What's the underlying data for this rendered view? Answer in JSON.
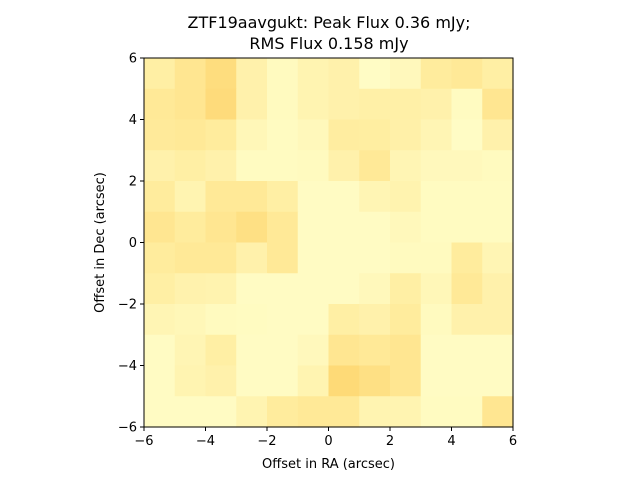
{
  "chart_data": {
    "type": "heatmap",
    "title_line1": "ZTF19aavgukt: Peak Flux 0.36 mJy;",
    "title_line2": "RMS Flux 0.158 mJy",
    "xlabel": "Offset in RA (arcsec)",
    "ylabel": "Offset in Dec (arcsec)",
    "xlim": [
      -6,
      6
    ],
    "ylim": [
      -6,
      6
    ],
    "xticks": [
      "−6",
      "−4",
      "−2",
      "0",
      "2",
      "4",
      "6"
    ],
    "yticks": [
      "−6",
      "−4",
      "−2",
      "0",
      "2",
      "4",
      "6"
    ],
    "grid": false,
    "colormap": "YlOrRd-like (light yellow to orange)",
    "pixel_size_arcsec": 1,
    "rows_top_to_bottom": [
      [
        0.3,
        0.45,
        0.6,
        0.25,
        0.1,
        0.2,
        0.25,
        0.05,
        0.12,
        0.35,
        0.4,
        0.3
      ],
      [
        0.4,
        0.45,
        0.62,
        0.25,
        0.1,
        0.2,
        0.25,
        0.28,
        0.28,
        0.25,
        0.08,
        0.45
      ],
      [
        0.38,
        0.4,
        0.35,
        0.15,
        0.08,
        0.13,
        0.33,
        0.32,
        0.27,
        0.18,
        0.05,
        0.25
      ],
      [
        0.25,
        0.3,
        0.25,
        0.08,
        0.08,
        0.1,
        0.25,
        0.4,
        0.18,
        0.12,
        0.12,
        0.1
      ],
      [
        0.35,
        0.2,
        0.4,
        0.4,
        0.3,
        0.07,
        0.07,
        0.18,
        0.22,
        0.08,
        0.08,
        0.08
      ],
      [
        0.45,
        0.35,
        0.45,
        0.55,
        0.4,
        0.07,
        0.07,
        0.07,
        0.13,
        0.08,
        0.08,
        0.08
      ],
      [
        0.35,
        0.4,
        0.4,
        0.25,
        0.4,
        0.07,
        0.07,
        0.07,
        0.1,
        0.1,
        0.35,
        0.18
      ],
      [
        0.3,
        0.23,
        0.22,
        0.07,
        0.07,
        0.07,
        0.07,
        0.13,
        0.3,
        0.15,
        0.4,
        0.25
      ],
      [
        0.18,
        0.15,
        0.1,
        0.08,
        0.07,
        0.07,
        0.3,
        0.25,
        0.35,
        0.1,
        0.25,
        0.25
      ],
      [
        0.07,
        0.18,
        0.3,
        0.07,
        0.07,
        0.12,
        0.45,
        0.4,
        0.45,
        0.07,
        0.07,
        0.07
      ],
      [
        0.07,
        0.2,
        0.25,
        0.07,
        0.07,
        0.2,
        0.65,
        0.55,
        0.45,
        0.07,
        0.07,
        0.07
      ],
      [
        0.07,
        0.07,
        0.07,
        0.2,
        0.35,
        0.4,
        0.4,
        0.2,
        0.2,
        0.08,
        0.08,
        0.45
      ]
    ]
  }
}
